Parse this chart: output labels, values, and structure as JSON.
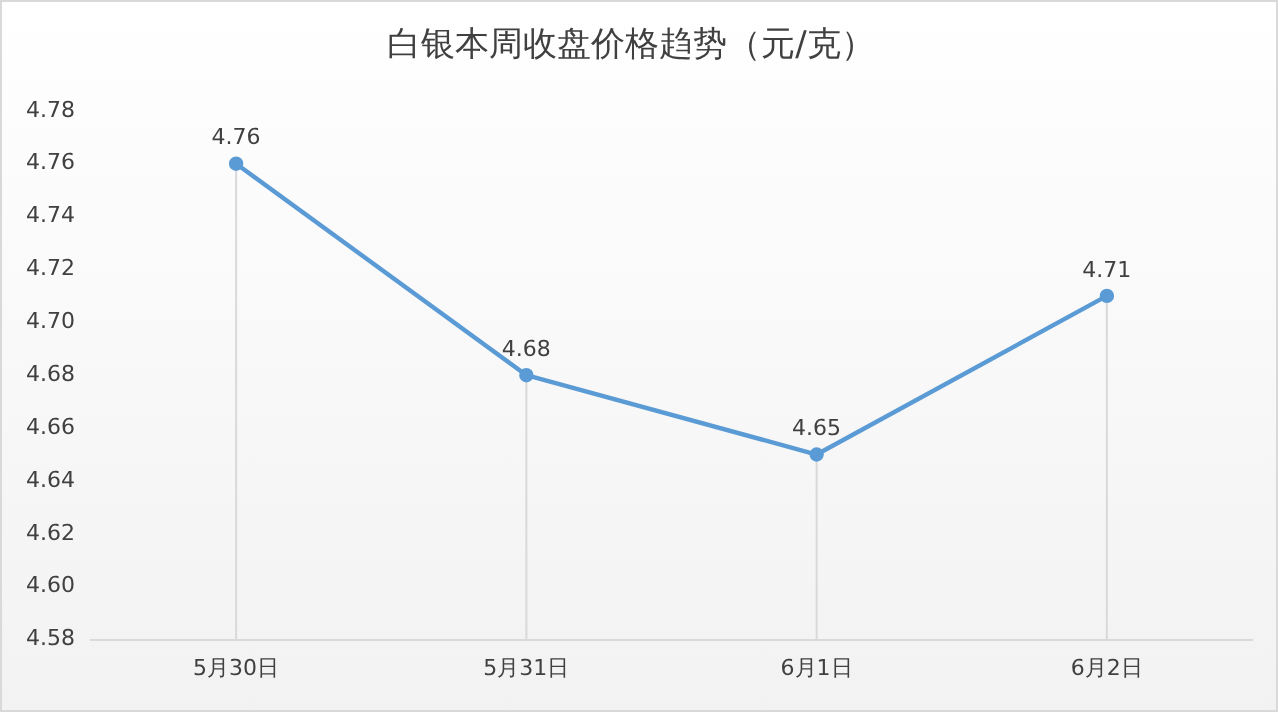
{
  "chart_data": {
    "type": "line",
    "title": "白银本周收盘价格趋势（元/克）",
    "categories": [
      "5月30日",
      "5月31日",
      "6月1日",
      "6月2日"
    ],
    "series": [
      {
        "color": "#5b9bd5",
        "values": [
          4.76,
          4.68,
          4.65,
          4.71
        ]
      }
    ],
    "ylim": [
      4.58,
      4.78
    ],
    "yticks": [
      {
        "value": 4.58,
        "label": "4.58"
      },
      {
        "value": 4.6,
        "label": "4.60"
      },
      {
        "value": 4.62,
        "label": "4.62"
      },
      {
        "value": 4.64,
        "label": "4.64"
      },
      {
        "value": 4.66,
        "label": "4.66"
      },
      {
        "value": 4.68,
        "label": "4.68"
      },
      {
        "value": 4.7,
        "label": "4.70"
      },
      {
        "value": 4.72,
        "label": "4.72"
      },
      {
        "value": 4.74,
        "label": "4.74"
      },
      {
        "value": 4.76,
        "label": "4.76"
      },
      {
        "value": 4.78,
        "label": "4.78"
      }
    ],
    "data_labels": true,
    "marker": "circle"
  }
}
